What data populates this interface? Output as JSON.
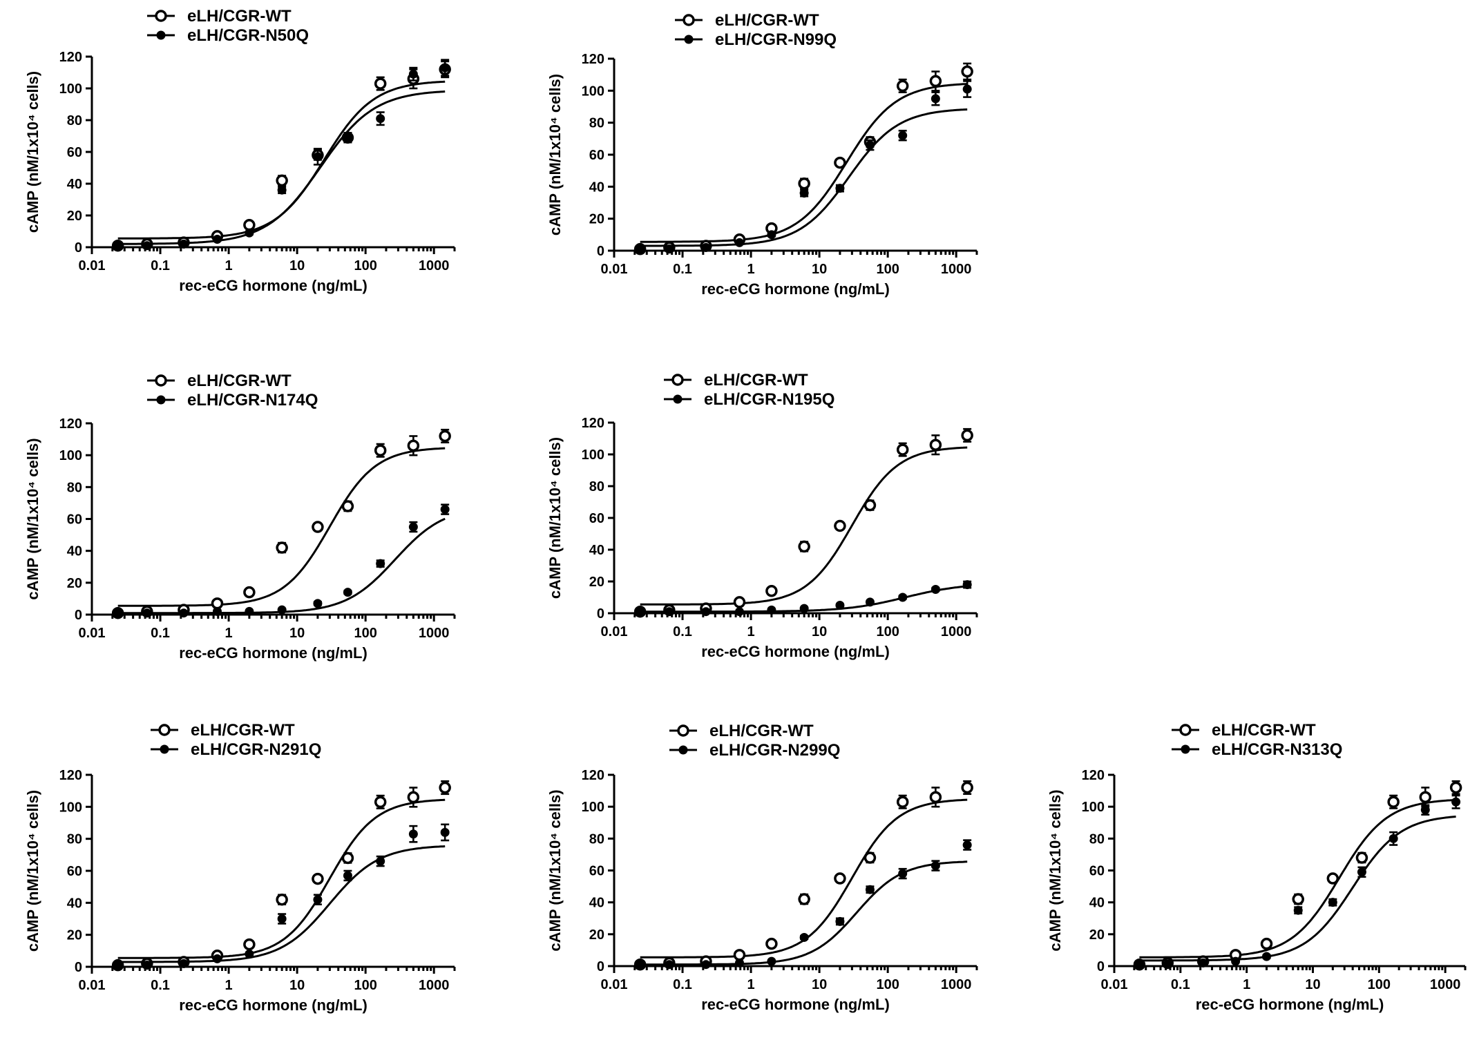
{
  "chart_data": [
    {
      "type": "scatter",
      "xlabel": "rec-eCG hormone (ng/mL)",
      "ylabel": "cAMP (nM/1x10⁴ cells)",
      "xscale": "log",
      "xlim": [
        0.01,
        2000
      ],
      "ylim": [
        0,
        120
      ],
      "x_ticks": [
        "0.01",
        "0.1",
        "1",
        "10",
        "100",
        "1000"
      ],
      "y_ticks": [
        "0",
        "20",
        "40",
        "60",
        "80",
        "100",
        "120"
      ],
      "legend_position": "top",
      "series": [
        {
          "name": "eLH/CGR-WT",
          "marker": "open-circle",
          "x": [
            0.024,
            0.064,
            0.22,
            0.68,
            2.0,
            6.0,
            20,
            55,
            165,
            500,
            1450
          ],
          "y": [
            1,
            2,
            3,
            7,
            14,
            42,
            58,
            69,
            103,
            106,
            112
          ],
          "err": [
            0,
            0,
            0,
            1,
            1,
            3,
            3,
            3,
            4,
            6,
            5
          ],
          "fit": {
            "bottom": 5.5,
            "top": 105,
            "ec50": 25,
            "hill": 1.2
          }
        },
        {
          "name": "eLH/CGR-N50Q",
          "marker": "filled-circle",
          "x": [
            0.024,
            0.064,
            0.22,
            0.68,
            2.0,
            6.0,
            20,
            55,
            165,
            500,
            1450
          ],
          "y": [
            1,
            1,
            2,
            5,
            9,
            36,
            57,
            69,
            81,
            109,
            113
          ],
          "err": [
            0,
            0,
            0,
            1,
            1,
            2,
            5,
            3,
            4,
            4,
            5
          ],
          "fit": {
            "bottom": 2,
            "top": 99,
            "ec50": 22,
            "hill": 1.1
          }
        }
      ]
    },
    {
      "type": "scatter",
      "xlabel": "rec-eCG hormone (ng/mL)",
      "ylabel": "cAMP (nM/1x10⁴ cells)",
      "xscale": "log",
      "xlim": [
        0.01,
        2000
      ],
      "ylim": [
        0,
        120
      ],
      "x_ticks": [
        "0.01",
        "0.1",
        "1",
        "10",
        "100",
        "1000"
      ],
      "y_ticks": [
        "0",
        "20",
        "40",
        "60",
        "80",
        "100",
        "120"
      ],
      "legend_position": "top",
      "series": [
        {
          "name": "eLH/CGR-WT",
          "marker": "open-circle",
          "x": [
            0.024,
            0.064,
            0.22,
            0.68,
            2.0,
            6.0,
            20,
            55,
            165,
            500,
            1450
          ],
          "y": [
            1,
            2,
            3,
            7,
            14,
            42,
            55,
            68,
            103,
            106,
            112
          ],
          "err": [
            0,
            0,
            0,
            1,
            1,
            3,
            2,
            3,
            4,
            6,
            5
          ],
          "fit": {
            "bottom": 5.5,
            "top": 105,
            "ec50": 25,
            "hill": 1.2
          }
        },
        {
          "name": "eLH/CGR-N99Q",
          "marker": "filled-circle",
          "x": [
            0.024,
            0.064,
            0.22,
            0.68,
            2.0,
            6.0,
            20,
            55,
            165,
            500,
            1450
          ],
          "y": [
            1,
            1,
            2,
            5,
            10,
            36,
            39,
            66,
            72,
            95,
            101
          ],
          "err": [
            0,
            0,
            0,
            1,
            1,
            2,
            2,
            3,
            3,
            4,
            5
          ],
          "fit": {
            "bottom": 3,
            "top": 89,
            "ec50": 27,
            "hill": 1.2
          }
        }
      ]
    },
    {
      "type": "scatter",
      "xlabel": "rec-eCG hormone (ng/mL)",
      "ylabel": "cAMP (nM/1x10⁴ cells)",
      "xscale": "log",
      "xlim": [
        0.01,
        2000
      ],
      "ylim": [
        0,
        120
      ],
      "x_ticks": [
        "0.01",
        "0.1",
        "1",
        "10",
        "100",
        "1000"
      ],
      "y_ticks": [
        "0",
        "20",
        "40",
        "60",
        "80",
        "100",
        "120"
      ],
      "legend_position": "top",
      "series": [
        {
          "name": "eLH/CGR-WT",
          "marker": "open-circle",
          "x": [
            0.024,
            0.064,
            0.22,
            0.68,
            2.0,
            6.0,
            20,
            55,
            165,
            500,
            1450
          ],
          "y": [
            1,
            2,
            3,
            7,
            14,
            42,
            55,
            68,
            103,
            106,
            112
          ],
          "err": [
            0,
            0,
            0,
            1,
            1,
            3,
            2,
            3,
            4,
            6,
            4
          ],
          "fit": {
            "bottom": 5.5,
            "top": 105,
            "ec50": 30,
            "hill": 1.3
          }
        },
        {
          "name": "eLH/CGR-N174Q",
          "marker": "filled-circle",
          "x": [
            0.024,
            0.064,
            0.22,
            0.68,
            2.0,
            6.0,
            20,
            55,
            165,
            500,
            1450
          ],
          "y": [
            1,
            1,
            1,
            2,
            2,
            3,
            7,
            14,
            32,
            55,
            66
          ],
          "err": [
            0,
            0,
            0,
            0,
            0,
            0,
            1,
            1,
            2,
            3,
            3
          ],
          "fit": {
            "bottom": 1,
            "top": 68,
            "ec50": 270,
            "hill": 1.2
          }
        }
      ]
    },
    {
      "type": "scatter",
      "xlabel": "rec-eCG hormone (ng/mL)",
      "ylabel": "cAMP (nM/1x10⁴ cells)",
      "xscale": "log",
      "xlim": [
        0.01,
        2000
      ],
      "ylim": [
        0,
        120
      ],
      "x_ticks": [
        "0.01",
        "0.1",
        "1",
        "10",
        "100",
        "1000"
      ],
      "y_ticks": [
        "0",
        "20",
        "40",
        "60",
        "80",
        "100",
        "120"
      ],
      "legend_position": "top",
      "series": [
        {
          "name": "eLH/CGR-WT",
          "marker": "open-circle",
          "x": [
            0.024,
            0.064,
            0.22,
            0.68,
            2.0,
            6.0,
            20,
            55,
            165,
            500,
            1450
          ],
          "y": [
            1,
            2,
            3,
            7,
            14,
            42,
            55,
            68,
            103,
            106,
            112
          ],
          "err": [
            0,
            0,
            0,
            1,
            1,
            3,
            2,
            3,
            4,
            6,
            4
          ],
          "fit": {
            "bottom": 5.5,
            "top": 105,
            "ec50": 30,
            "hill": 1.3
          }
        },
        {
          "name": "eLH/CGR-N195Q",
          "marker": "filled-circle",
          "x": [
            0.024,
            0.064,
            0.22,
            0.68,
            2.0,
            6.0,
            20,
            55,
            165,
            500,
            1450
          ],
          "y": [
            1,
            1,
            1,
            1,
            2,
            3,
            5,
            7,
            10,
            15,
            18
          ],
          "err": [
            0,
            0,
            0,
            0,
            0,
            0,
            0,
            0,
            1,
            1,
            2
          ],
          "fit": {
            "bottom": 1,
            "top": 19,
            "ec50": 180,
            "hill": 1.0
          }
        }
      ]
    },
    {
      "type": "scatter",
      "xlabel": "rec-eCG hormone (ng/mL)",
      "ylabel": "cAMP (nM/1x10⁴ cells)",
      "xscale": "log",
      "xlim": [
        0.01,
        2000
      ],
      "ylim": [
        0,
        120
      ],
      "x_ticks": [
        "0.01",
        "0.1",
        "1",
        "10",
        "100",
        "1000"
      ],
      "y_ticks": [
        "0",
        "20",
        "40",
        "60",
        "80",
        "100",
        "120"
      ],
      "legend_position": "top",
      "series": [
        {
          "name": "eLH/CGR-WT",
          "marker": "open-circle",
          "x": [
            0.024,
            0.064,
            0.22,
            0.68,
            2.0,
            6.0,
            20,
            55,
            165,
            500,
            1450
          ],
          "y": [
            1,
            2,
            3,
            7,
            14,
            42,
            55,
            68,
            103,
            106,
            112
          ],
          "err": [
            0,
            0,
            0,
            1,
            1,
            3,
            2,
            3,
            4,
            6,
            4
          ],
          "fit": {
            "bottom": 5.5,
            "top": 105,
            "ec50": 30,
            "hill": 1.3
          }
        },
        {
          "name": "eLH/CGR-N291Q",
          "marker": "filled-circle",
          "x": [
            0.024,
            0.064,
            0.22,
            0.68,
            2.0,
            6.0,
            20,
            55,
            165,
            500,
            1450
          ],
          "y": [
            1,
            1,
            2,
            5,
            8,
            30,
            42,
            57,
            66,
            83,
            84
          ],
          "err": [
            0,
            0,
            0,
            1,
            1,
            3,
            3,
            3,
            3,
            5,
            5
          ],
          "fit": {
            "bottom": 3,
            "top": 76,
            "ec50": 30,
            "hill": 1.2
          }
        }
      ]
    },
    {
      "type": "scatter",
      "xlabel": "rec-eCG hormone (ng/mL)",
      "ylabel": "cAMP (nM/1x10⁴ cells)",
      "xscale": "log",
      "xlim": [
        0.01,
        2000
      ],
      "ylim": [
        0,
        120
      ],
      "x_ticks": [
        "0.01",
        "0.1",
        "1",
        "10",
        "100",
        "1000"
      ],
      "y_ticks": [
        "0",
        "20",
        "40",
        "60",
        "80",
        "100",
        "120"
      ],
      "legend_position": "top",
      "series": [
        {
          "name": "eLH/CGR-WT",
          "marker": "open-circle",
          "x": [
            0.024,
            0.064,
            0.22,
            0.68,
            2.0,
            6.0,
            20,
            55,
            165,
            500,
            1450
          ],
          "y": [
            1,
            2,
            3,
            7,
            14,
            42,
            55,
            68,
            103,
            106,
            112
          ],
          "err": [
            0,
            0,
            0,
            1,
            1,
            3,
            2,
            3,
            4,
            6,
            4
          ],
          "fit": {
            "bottom": 5.5,
            "top": 105,
            "ec50": 30,
            "hill": 1.3
          }
        },
        {
          "name": "eLH/CGR-N299Q",
          "marker": "filled-circle",
          "x": [
            0.024,
            0.064,
            0.22,
            0.68,
            2.0,
            6.0,
            20,
            55,
            165,
            500,
            1450
          ],
          "y": [
            1,
            1,
            1,
            2,
            3,
            18,
            28,
            48,
            58,
            63,
            76
          ],
          "err": [
            0,
            0,
            0,
            0,
            0,
            1,
            2,
            2,
            3,
            3,
            3
          ],
          "fit": {
            "bottom": 1,
            "top": 66,
            "ec50": 35,
            "hill": 1.3
          }
        }
      ]
    },
    {
      "type": "scatter",
      "xlabel": "rec-eCG hormone (ng/mL)",
      "ylabel": "cAMP (nM/1x10⁴ cells)",
      "xscale": "log",
      "xlim": [
        0.01,
        2000
      ],
      "ylim": [
        0,
        120
      ],
      "x_ticks": [
        "0.01",
        "0.1",
        "1",
        "10",
        "100",
        "1000"
      ],
      "y_ticks": [
        "0",
        "20",
        "40",
        "60",
        "80",
        "100",
        "120"
      ],
      "legend_position": "top",
      "series": [
        {
          "name": "eLH/CGR-WT",
          "marker": "open-circle",
          "x": [
            0.024,
            0.064,
            0.22,
            0.68,
            2.0,
            6.0,
            20,
            55,
            165,
            500,
            1450
          ],
          "y": [
            1,
            2,
            3,
            7,
            14,
            42,
            55,
            68,
            103,
            106,
            112
          ],
          "err": [
            0,
            0,
            0,
            1,
            1,
            3,
            2,
            3,
            4,
            6,
            4
          ],
          "fit": {
            "bottom": 5.5,
            "top": 105,
            "ec50": 25,
            "hill": 1.2
          }
        },
        {
          "name": "eLH/CGR-N313Q",
          "marker": "filled-circle",
          "x": [
            0.024,
            0.064,
            0.22,
            0.68,
            2.0,
            6.0,
            20,
            55,
            165,
            500,
            1450
          ],
          "y": [
            1,
            1,
            2,
            3,
            6,
            35,
            40,
            59,
            80,
            98,
            103
          ],
          "err": [
            0,
            0,
            0,
            0,
            1,
            2,
            2,
            3,
            4,
            3,
            4
          ],
          "fit": {
            "bottom": 3.5,
            "top": 95,
            "ec50": 40,
            "hill": 1.2
          }
        }
      ]
    }
  ]
}
